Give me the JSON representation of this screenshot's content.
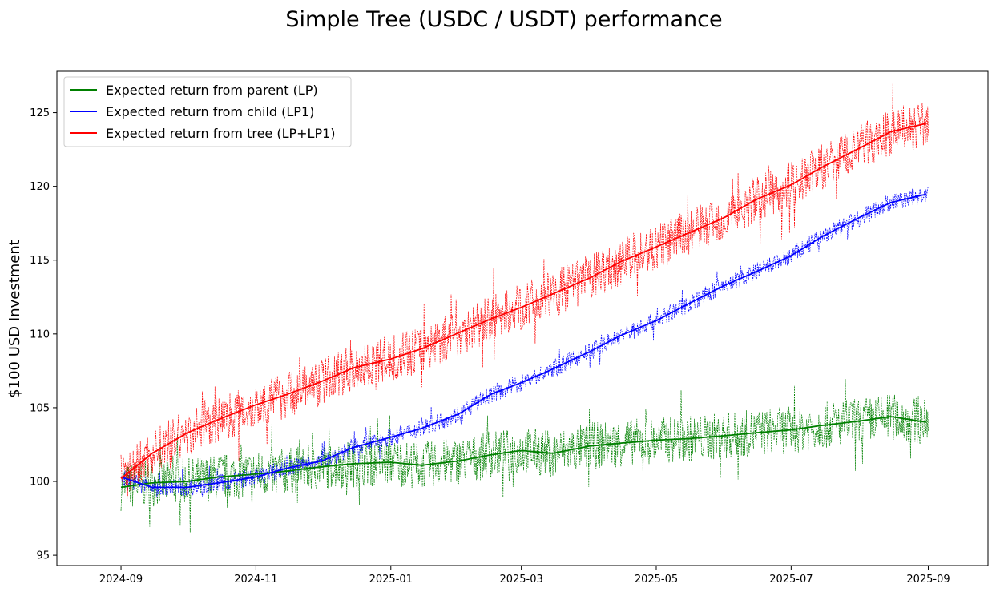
{
  "chart_data": {
    "type": "line",
    "title": "Simple Tree (USDC / USDT) performance",
    "xlabel": "",
    "ylabel": "$100 USD Investment",
    "x_type": "date",
    "xlim": [
      "2024-08-03",
      "2025-09-28"
    ],
    "ylim": [
      94.3,
      127.8
    ],
    "x_ticks": [
      "2024-09",
      "2024-11",
      "2025-01",
      "2025-03",
      "2025-05",
      "2025-07",
      "2025-09"
    ],
    "y_ticks": [
      95,
      100,
      105,
      110,
      115,
      120,
      125
    ],
    "grid": false,
    "legend_position": "upper-left",
    "colors": {
      "parent": "#008000",
      "child": "#0000ff",
      "tree": "#ff0000"
    },
    "series": [
      {
        "name": "Expected return from parent (LP)",
        "color": "#008000",
        "x": [
          "2024-09-01",
          "2024-09-15",
          "2024-10-01",
          "2024-10-15",
          "2024-11-01",
          "2024-11-15",
          "2024-12-01",
          "2024-12-15",
          "2025-01-01",
          "2025-01-15",
          "2025-02-01",
          "2025-02-15",
          "2025-03-01",
          "2025-03-15",
          "2025-04-01",
          "2025-04-15",
          "2025-05-01",
          "2025-05-15",
          "2025-06-01",
          "2025-06-15",
          "2025-07-01",
          "2025-07-15",
          "2025-08-01",
          "2025-08-15",
          "2025-09-01"
        ],
        "values": [
          99.6,
          99.9,
          100.0,
          100.3,
          100.5,
          100.7,
          101.0,
          101.2,
          101.3,
          101.1,
          101.4,
          101.8,
          102.1,
          101.9,
          102.4,
          102.6,
          102.8,
          102.9,
          103.1,
          103.3,
          103.5,
          103.8,
          104.1,
          104.4,
          104.0
        ],
        "noise_raw": 1.6
      },
      {
        "name": "Expected return from child (LP1)",
        "color": "#0000ff",
        "x": [
          "2024-09-01",
          "2024-09-15",
          "2024-10-01",
          "2024-10-15",
          "2024-11-01",
          "2024-11-15",
          "2024-12-01",
          "2024-12-15",
          "2025-01-01",
          "2025-01-15",
          "2025-02-01",
          "2025-02-15",
          "2025-03-01",
          "2025-03-15",
          "2025-04-01",
          "2025-04-15",
          "2025-05-01",
          "2025-05-15",
          "2025-06-01",
          "2025-06-15",
          "2025-07-01",
          "2025-07-15",
          "2025-08-01",
          "2025-08-15",
          "2025-09-01"
        ],
        "values": [
          100.3,
          99.6,
          99.6,
          99.9,
          100.3,
          100.9,
          101.4,
          102.3,
          103.0,
          103.6,
          104.6,
          105.9,
          106.7,
          107.6,
          108.8,
          109.9,
          110.9,
          112.0,
          113.3,
          114.2,
          115.3,
          116.6,
          117.9,
          118.9,
          119.5
        ],
        "noise_raw": 0.6
      },
      {
        "name": "Expected return from tree (LP+LP1)",
        "color": "#ff0000",
        "x": [
          "2024-09-01",
          "2024-09-15",
          "2024-10-01",
          "2024-10-15",
          "2024-11-01",
          "2024-11-15",
          "2024-12-01",
          "2024-12-15",
          "2025-01-01",
          "2025-01-15",
          "2025-02-01",
          "2025-02-15",
          "2025-03-01",
          "2025-03-15",
          "2025-04-01",
          "2025-04-15",
          "2025-05-01",
          "2025-05-15",
          "2025-06-01",
          "2025-06-15",
          "2025-07-01",
          "2025-07-15",
          "2025-08-01",
          "2025-08-15",
          "2025-09-01"
        ],
        "values": [
          100.2,
          101.9,
          103.3,
          104.2,
          105.2,
          105.9,
          106.8,
          107.7,
          108.3,
          109.0,
          110.1,
          111.0,
          111.8,
          112.7,
          113.8,
          114.9,
          115.9,
          116.8,
          117.9,
          119.1,
          120.1,
          121.3,
          122.6,
          123.7,
          124.3
        ],
        "noise_raw": 1.6
      }
    ]
  }
}
